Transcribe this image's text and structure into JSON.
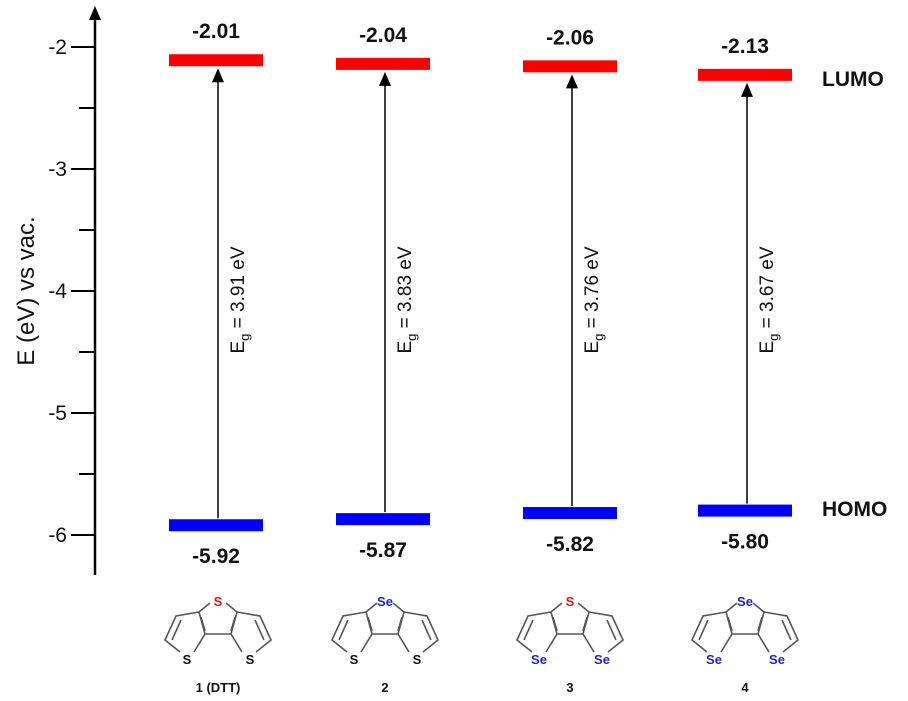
{
  "chart_data": {
    "type": "energy-level diagram",
    "ylabel": "E (eV) vs vac.",
    "ylim": [
      -6.3,
      -1.7
    ],
    "yticks": [
      -2,
      -3,
      -4,
      -5,
      -6
    ],
    "ytick_labels": [
      "-2",
      "-3",
      "-4",
      "-5",
      "-6"
    ],
    "minor_ticks": [
      -2.5,
      -3.5,
      -4.5,
      -5.5
    ],
    "level_labels": {
      "lumo": "LUMO",
      "homo": "HOMO"
    },
    "colors": {
      "lumo": "#ff0000",
      "homo": "#0000ff",
      "sulfur_highlight": "#ee1111",
      "selenium": "#2222cc",
      "sulfur": "#111111"
    },
    "compounds": [
      {
        "name": "1 (DTT)",
        "lumo": -2.01,
        "homo": -5.92,
        "lumo_label": "-2.01",
        "homo_label": "-5.92",
        "eg_symbol": "E",
        "eg_sub": "g",
        "eg_text": " = 3.91 eV",
        "atoms": {
          "top": "S",
          "left": "S",
          "right": "S"
        },
        "atom_colors": {
          "top": "#ee1111",
          "left": "#111111",
          "right": "#111111"
        }
      },
      {
        "name": "2",
        "lumo": -2.04,
        "homo": -5.87,
        "lumo_label": "-2.04",
        "homo_label": "-5.87",
        "eg_symbol": "E",
        "eg_sub": "g",
        "eg_text": " = 3.83 eV",
        "atoms": {
          "top": "Se",
          "left": "S",
          "right": "S"
        },
        "atom_colors": {
          "top": "#2222cc",
          "left": "#111111",
          "right": "#111111"
        }
      },
      {
        "name": "3",
        "lumo": -2.06,
        "homo": -5.82,
        "lumo_label": "-2.06",
        "homo_label": "-5.82",
        "eg_symbol": "E",
        "eg_sub": "g",
        "eg_text": " = 3.76 eV",
        "atoms": {
          "top": "S",
          "left": "Se",
          "right": "Se"
        },
        "atom_colors": {
          "top": "#ee1111",
          "left": "#2222cc",
          "right": "#2222cc"
        }
      },
      {
        "name": "4",
        "lumo": -2.13,
        "homo": -5.8,
        "lumo_label": "-2.13",
        "homo_label": "-5.80",
        "eg_symbol": "E",
        "eg_sub": "g",
        "eg_text": " = 3.67 eV",
        "atoms": {
          "top": "Se",
          "left": "Se",
          "right": "Se"
        },
        "atom_colors": {
          "top": "#2222cc",
          "left": "#2222cc",
          "right": "#2222cc"
        }
      }
    ]
  }
}
